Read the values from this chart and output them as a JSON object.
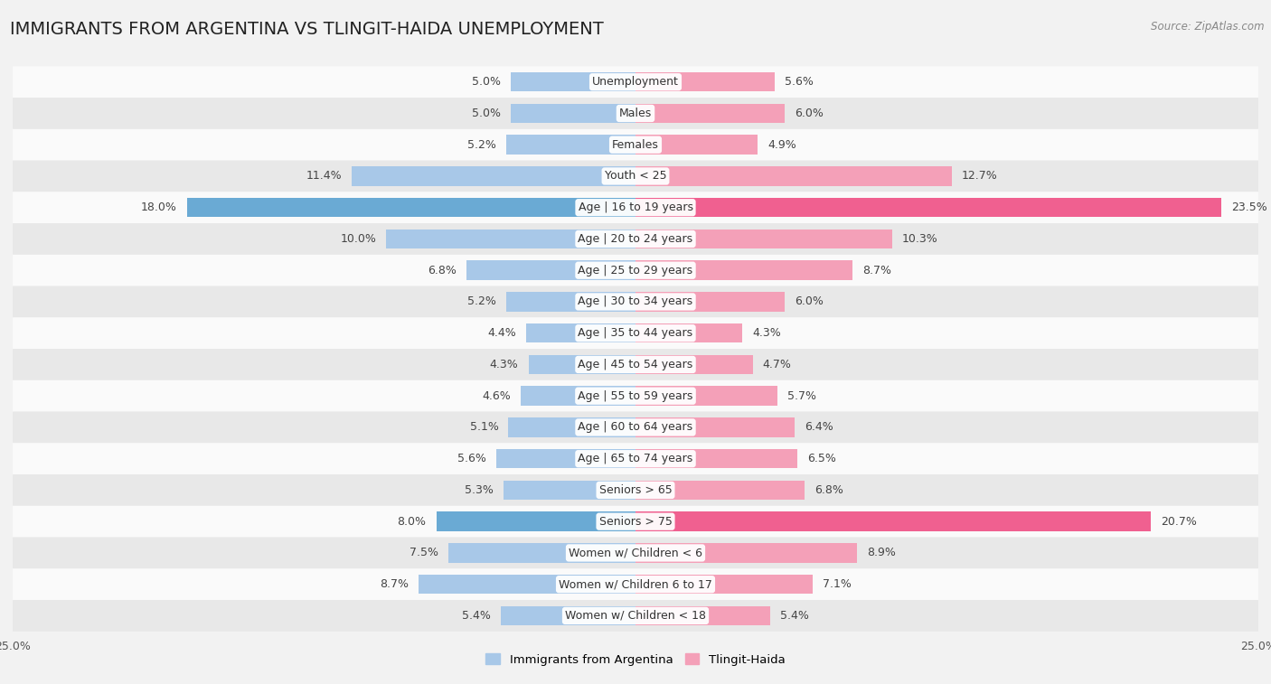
{
  "title": "IMMIGRANTS FROM ARGENTINA VS TLINGIT-HAIDA UNEMPLOYMENT",
  "source": "Source: ZipAtlas.com",
  "categories": [
    "Unemployment",
    "Males",
    "Females",
    "Youth < 25",
    "Age | 16 to 19 years",
    "Age | 20 to 24 years",
    "Age | 25 to 29 years",
    "Age | 30 to 34 years",
    "Age | 35 to 44 years",
    "Age | 45 to 54 years",
    "Age | 55 to 59 years",
    "Age | 60 to 64 years",
    "Age | 65 to 74 years",
    "Seniors > 65",
    "Seniors > 75",
    "Women w/ Children < 6",
    "Women w/ Children 6 to 17",
    "Women w/ Children < 18"
  ],
  "left_values": [
    5.0,
    5.0,
    5.2,
    11.4,
    18.0,
    10.0,
    6.8,
    5.2,
    4.4,
    4.3,
    4.6,
    5.1,
    5.6,
    5.3,
    8.0,
    7.5,
    8.7,
    5.4
  ],
  "right_values": [
    5.6,
    6.0,
    4.9,
    12.7,
    23.5,
    10.3,
    8.7,
    6.0,
    4.3,
    4.7,
    5.7,
    6.4,
    6.5,
    6.8,
    20.7,
    8.9,
    7.1,
    5.4
  ],
  "left_color": "#A8C8E8",
  "right_color": "#F4A0B8",
  "highlight_left_color": "#6AAAD4",
  "highlight_right_color": "#F06090",
  "highlight_rows": [
    4,
    14
  ],
  "bg_color": "#f2f2f2",
  "row_bg_light": "#fafafa",
  "row_bg_dark": "#e8e8e8",
  "axis_limit": 25.0,
  "legend_left": "Immigrants from Argentina",
  "legend_right": "Tlingit-Haida",
  "title_fontsize": 14,
  "label_fontsize": 9,
  "value_fontsize": 9
}
